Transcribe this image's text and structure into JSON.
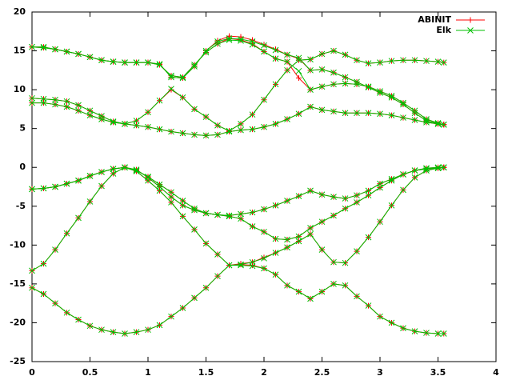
{
  "chart_data": {
    "type": "line",
    "legend": "top-right",
    "grid": false,
    "xlim": [
      0,
      4
    ],
    "ylim": [
      -25,
      20
    ],
    "xticks": [
      0,
      0.5,
      1,
      1.5,
      2,
      2.5,
      3,
      3.5,
      4
    ],
    "yticks": [
      -25,
      -20,
      -15,
      -10,
      -5,
      0,
      5,
      10,
      15,
      20
    ],
    "x": [
      0,
      0.1,
      0.2,
      0.3,
      0.4,
      0.5,
      0.6,
      0.7,
      0.8,
      0.9,
      1.0,
      1.1,
      1.2,
      1.3,
      1.4,
      1.5,
      1.6,
      1.7,
      1.8,
      1.9,
      2.0,
      2.1,
      2.2,
      2.3,
      2.4,
      2.5,
      2.6,
      2.7,
      2.8,
      2.9,
      3.0,
      3.1,
      3.2,
      3.3,
      3.4,
      3.5,
      3.55
    ],
    "series": [
      {
        "name": "ABINIT",
        "color": "#ff0000",
        "marker": "plus",
        "bands": [
          [
            -15.5,
            -16.3,
            -17.5,
            -18.7,
            -19.6,
            -20.4,
            -20.9,
            -21.2,
            -21.4,
            -21.2,
            -20.9,
            -20.3,
            -19.2,
            -18.1,
            -16.8,
            -15.5,
            -14.0,
            -12.6,
            -12.5,
            -12.6,
            -13.0,
            -13.8,
            -15.2,
            -16.0,
            -16.9,
            -16.0,
            -15.0,
            -15.2,
            -16.6,
            -17.8,
            -19.2,
            -20.0,
            -20.7,
            -21.1,
            -21.3,
            -21.4,
            -21.4
          ],
          [
            -13.3,
            -12.4,
            -10.6,
            -8.5,
            -6.5,
            -4.4,
            -2.4,
            -0.8,
            0,
            -0.5,
            -1.7,
            -3.0,
            -4.5,
            -6.3,
            -8.0,
            -9.8,
            -11.2,
            -12.6,
            -12.4,
            -12.2,
            -11.6,
            -11.0,
            -10.3,
            -9.5,
            -8.6,
            -10.6,
            -12.2,
            -12.3,
            -10.8,
            -9.0,
            -7.0,
            -4.9,
            -2.9,
            -1.3,
            -0.4,
            -0.1,
            0
          ],
          [
            -2.8,
            -2.7,
            -2.5,
            -2.1,
            -1.7,
            -1.1,
            -0.6,
            -0.2,
            0,
            -0.3,
            -1.3,
            -2.5,
            -3.8,
            -4.9,
            -5.5,
            -5.9,
            -6.1,
            -6.3,
            -6.6,
            -7.6,
            -8.3,
            -9.2,
            -9.3,
            -8.9,
            -7.8,
            -7.0,
            -6.2,
            -5.3,
            -4.5,
            -3.6,
            -2.6,
            -1.7,
            -0.9,
            -0.4,
            -0.2,
            -0.1,
            0
          ],
          [
            -2.8,
            -2.7,
            -2.5,
            -2.1,
            -1.7,
            -1.1,
            -0.6,
            -0.2,
            0,
            -0.4,
            -1.2,
            -2.2,
            -3.2,
            -4.3,
            -5.3,
            -5.9,
            -6.1,
            -6.2,
            -6.0,
            -5.8,
            -5.4,
            -4.9,
            -4.3,
            -3.7,
            -3.0,
            -3.5,
            -3.8,
            -4.0,
            -3.6,
            -3.0,
            -2.1,
            -1.5,
            -0.9,
            -0.4,
            -0.1,
            0,
            0
          ],
          [
            8.3,
            8.3,
            8.1,
            7.8,
            7.3,
            6.7,
            6.2,
            5.8,
            5.6,
            5.4,
            5.2,
            4.9,
            4.6,
            4.4,
            4.2,
            4.1,
            4.2,
            4.6,
            4.8,
            4.9,
            5.2,
            5.6,
            6.2,
            6.9,
            7.8,
            7.4,
            7.2,
            7.0,
            7.0,
            7.0,
            6.9,
            6.7,
            6.4,
            6.1,
            5.8,
            5.6,
            5.5
          ],
          [
            8.9,
            8.8,
            8.7,
            8.5,
            8.0,
            7.3,
            6.6,
            5.9,
            5.6,
            6.0,
            7.1,
            8.6,
            10.0,
            9.0,
            7.5,
            6.5,
            5.4,
            4.7,
            5.6,
            6.8,
            8.7,
            10.7,
            12.5,
            13.8,
            13.9,
            14.6,
            15.0,
            14.5,
            13.8,
            13.4,
            13.5,
            13.7,
            13.8,
            13.8,
            13.7,
            13.6,
            13.5
          ],
          [
            15.5,
            15.4,
            15.2,
            14.9,
            14.6,
            14.2,
            13.8,
            13.6,
            13.5,
            13.5,
            13.5,
            13.2,
            11.8,
            11.6,
            13.2,
            14.8,
            15.9,
            16.6,
            16.4,
            15.9,
            14.9,
            14.0,
            13.6,
            11.5,
            10.0,
            10.4,
            10.7,
            10.8,
            10.7,
            10.4,
            9.8,
            9.2,
            8.3,
            7.3,
            6.2,
            5.7,
            5.5
          ],
          [
            15.5,
            15.5,
            15.2,
            14.9,
            14.6,
            14.2,
            13.8,
            13.6,
            13.5,
            13.5,
            13.5,
            13.3,
            11.6,
            11.5,
            13.0,
            15.0,
            16.3,
            16.9,
            16.8,
            16.4,
            15.8,
            15.2,
            14.5,
            14.0,
            12.5,
            12.6,
            12.2,
            11.6,
            11.0,
            10.3,
            9.6,
            9.0,
            8.1,
            7.0,
            6.0,
            5.6,
            5.5
          ]
        ]
      },
      {
        "name": "Elk",
        "color": "#00c000",
        "marker": "cross",
        "bands": [
          [
            -15.5,
            -16.3,
            -17.5,
            -18.7,
            -19.6,
            -20.4,
            -20.9,
            -21.2,
            -21.4,
            -21.2,
            -20.9,
            -20.3,
            -19.2,
            -18.1,
            -16.8,
            -15.5,
            -14.0,
            -12.6,
            -12.6,
            -12.7,
            -13.0,
            -13.8,
            -15.2,
            -16.0,
            -16.9,
            -16.0,
            -15.0,
            -15.2,
            -16.6,
            -17.8,
            -19.2,
            -20.0,
            -20.7,
            -21.1,
            -21.3,
            -21.4,
            -21.4
          ],
          [
            -13.3,
            -12.4,
            -10.6,
            -8.5,
            -6.5,
            -4.4,
            -2.4,
            -0.8,
            0,
            -0.5,
            -1.7,
            -3.0,
            -4.5,
            -6.3,
            -8.0,
            -9.8,
            -11.2,
            -12.6,
            -12.5,
            -12.2,
            -11.7,
            -11.0,
            -10.3,
            -9.5,
            -8.6,
            -10.6,
            -12.2,
            -12.3,
            -10.8,
            -9.0,
            -7.0,
            -4.9,
            -2.9,
            -1.3,
            -0.4,
            -0.1,
            0
          ],
          [
            -2.8,
            -2.7,
            -2.5,
            -2.1,
            -1.7,
            -1.1,
            -0.6,
            -0.2,
            0,
            -0.3,
            -1.3,
            -2.5,
            -3.8,
            -4.9,
            -5.5,
            -5.9,
            -6.1,
            -6.3,
            -6.6,
            -7.6,
            -8.3,
            -9.2,
            -9.3,
            -8.9,
            -7.8,
            -7.0,
            -6.2,
            -5.3,
            -4.5,
            -3.6,
            -2.6,
            -1.7,
            -0.9,
            -0.4,
            -0.2,
            -0.1,
            0
          ],
          [
            -2.8,
            -2.7,
            -2.5,
            -2.1,
            -1.7,
            -1.1,
            -0.6,
            -0.2,
            0,
            -0.4,
            -1.2,
            -2.2,
            -3.2,
            -4.3,
            -5.3,
            -5.9,
            -6.1,
            -6.2,
            -6.0,
            -5.8,
            -5.4,
            -4.9,
            -4.3,
            -3.7,
            -3.0,
            -3.5,
            -3.8,
            -4.0,
            -3.6,
            -3.0,
            -2.1,
            -1.5,
            -0.9,
            -0.4,
            -0.1,
            0,
            0
          ],
          [
            8.3,
            8.3,
            8.1,
            7.8,
            7.3,
            6.7,
            6.2,
            5.8,
            5.6,
            5.4,
            5.2,
            4.9,
            4.6,
            4.4,
            4.2,
            4.1,
            4.2,
            4.6,
            4.8,
            4.9,
            5.2,
            5.6,
            6.2,
            6.9,
            7.8,
            7.4,
            7.2,
            7.0,
            7.0,
            7.0,
            6.9,
            6.7,
            6.4,
            6.1,
            5.8,
            5.6,
            5.5
          ],
          [
            8.9,
            8.8,
            8.7,
            8.5,
            8.0,
            7.3,
            6.6,
            5.9,
            5.6,
            6.0,
            7.1,
            8.6,
            10.1,
            9.0,
            7.5,
            6.5,
            5.4,
            4.7,
            5.6,
            6.8,
            8.7,
            10.7,
            12.5,
            13.8,
            13.9,
            14.6,
            15.0,
            14.5,
            13.8,
            13.4,
            13.5,
            13.7,
            13.8,
            13.8,
            13.7,
            13.6,
            13.5
          ],
          [
            15.5,
            15.4,
            15.2,
            14.9,
            14.6,
            14.2,
            13.8,
            13.6,
            13.5,
            13.5,
            13.5,
            13.2,
            11.8,
            11.6,
            13.2,
            14.8,
            15.9,
            16.4,
            16.3,
            15.8,
            14.9,
            14.0,
            13.6,
            12.4,
            10.0,
            10.4,
            10.7,
            10.8,
            10.7,
            10.4,
            9.8,
            9.2,
            8.3,
            7.3,
            6.2,
            5.7,
            5.5
          ],
          [
            15.5,
            15.5,
            15.2,
            14.9,
            14.6,
            14.2,
            13.8,
            13.6,
            13.5,
            13.5,
            13.5,
            13.3,
            11.6,
            11.5,
            13.0,
            15.0,
            16.2,
            16.6,
            16.5,
            16.2,
            15.7,
            15.1,
            14.5,
            14.1,
            12.5,
            12.6,
            12.2,
            11.6,
            11.0,
            10.3,
            9.6,
            9.0,
            8.1,
            7.0,
            6.0,
            5.6,
            5.5
          ]
        ]
      }
    ]
  }
}
